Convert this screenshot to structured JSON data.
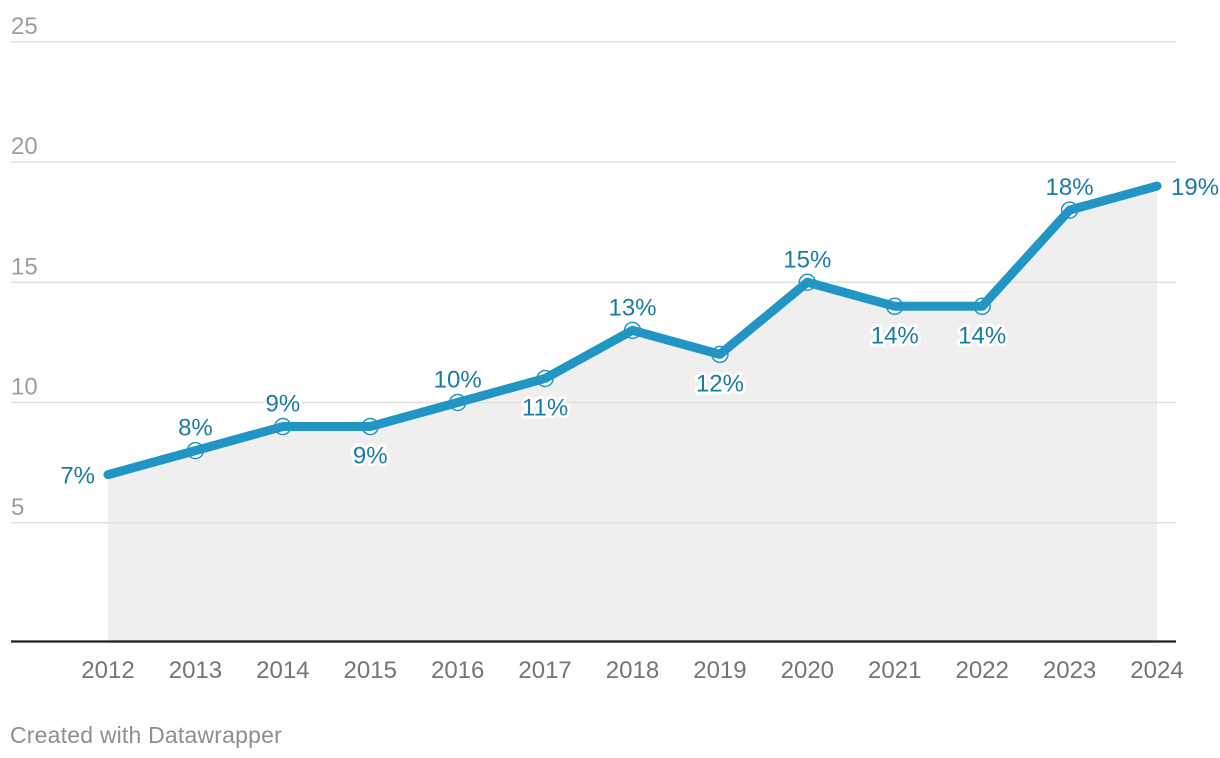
{
  "chart_data": {
    "type": "line",
    "x": [
      2012,
      2013,
      2014,
      2015,
      2016,
      2017,
      2018,
      2019,
      2020,
      2021,
      2022,
      2023,
      2024
    ],
    "series": [
      {
        "name": "value",
        "values": [
          7,
          8,
          9,
          9,
          10,
          11,
          13,
          12,
          15,
          14,
          14,
          18,
          19
        ]
      }
    ],
    "value_labels": [
      "7%",
      "8%",
      "9%",
      "9%",
      "10%",
      "11%",
      "13%",
      "12%",
      "15%",
      "14%",
      "14%",
      "18%",
      "19%"
    ],
    "label_placement": [
      "left",
      "above",
      "above",
      "below",
      "above",
      "below",
      "above",
      "below",
      "above",
      "below",
      "below",
      "above",
      "right"
    ],
    "yticks": [
      5,
      10,
      15,
      20,
      25
    ],
    "ytick_labels": [
      "5",
      "10",
      "15",
      "20",
      "25"
    ],
    "ylim": [
      0,
      25
    ],
    "title": "",
    "xlabel": "",
    "ylabel": "",
    "grid": "horizontal",
    "legend": "none",
    "area_fill": true,
    "marker": "open-circle",
    "markers_on_endpoints": false,
    "colors": {
      "line": "#2196c4",
      "marker_fill": "#ffffff",
      "marker_stroke": "#2196c4",
      "value_label": "#1a7ca4",
      "area": "#efefef",
      "grid": "#e0e0e0",
      "axis": "#1f1f1f",
      "ytick_label": "#9e9e9e",
      "xtick_label": "#757575"
    }
  },
  "footer": {
    "credit": "Created with Datawrapper"
  }
}
